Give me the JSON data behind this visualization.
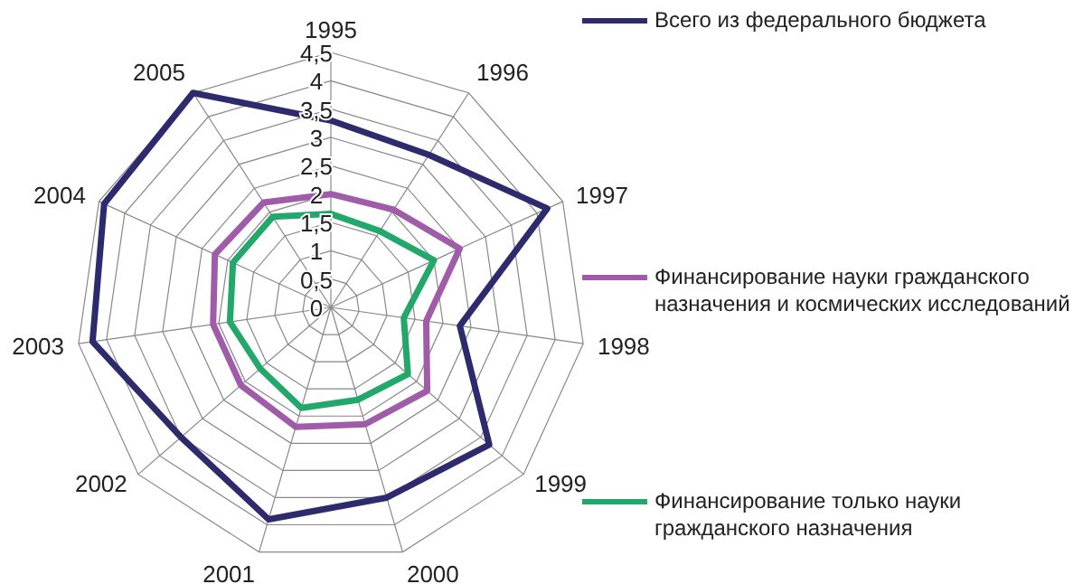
{
  "chart_data": {
    "type": "radar",
    "categories": [
      "1995",
      "1996",
      "1997",
      "1998",
      "1999",
      "2000",
      "2001",
      "2002",
      "2003",
      "2004",
      "2005"
    ],
    "series": [
      {
        "name": "Всего из федерального бюджета",
        "color": "#2e2a6e",
        "values": [
          3.3,
          3.2,
          4.2,
          2.3,
          3.7,
          3.5,
          3.9,
          3.5,
          4.25,
          4.4,
          4.5
        ]
      },
      {
        "name": "Финансирование науки гражданского назначения и космических исследований",
        "color": "#a05ca8",
        "values": [
          2.0,
          2.05,
          2.5,
          1.7,
          2.25,
          2.15,
          2.2,
          2.1,
          2.1,
          2.25,
          2.2
        ]
      },
      {
        "name": "Финансирование только науки гражданского назначения",
        "color": "#22a86a",
        "values": [
          1.65,
          1.6,
          2.0,
          1.3,
          1.8,
          1.7,
          1.85,
          1.65,
          1.8,
          1.9,
          1.9
        ]
      }
    ],
    "ylim": [
      0,
      4.5
    ],
    "yticks": [
      {
        "value": 0,
        "label": "0"
      },
      {
        "value": 0.5,
        "label": "0,5"
      },
      {
        "value": 1,
        "label": "1"
      },
      {
        "value": 1.5,
        "label": "1,5"
      },
      {
        "value": 2,
        "label": "2"
      },
      {
        "value": 2.5,
        "label": "2,5"
      },
      {
        "value": 3,
        "label": "3"
      },
      {
        "value": 3.5,
        "label": "3,5"
      },
      {
        "value": 4,
        "label": "4"
      },
      {
        "value": 4.5,
        "label": "4,5"
      }
    ],
    "grid": true,
    "legend": "right",
    "marker": "none",
    "line_style": "solid"
  }
}
